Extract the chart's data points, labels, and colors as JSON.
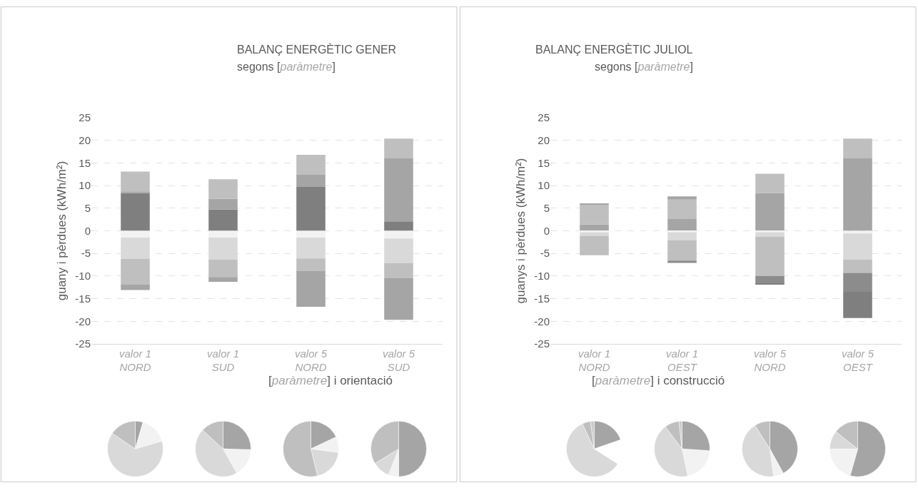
{
  "chart_data": [
    {
      "type": "bar",
      "title": "BALANÇ ENERGÈTIC GENER",
      "subtitle": "segons [paràmetre]",
      "xlabel": "[paràmetre] i orientació",
      "ylabel": "guany i pèrdues (kWh/m²)",
      "stacked": true,
      "grid": "y",
      "categories": [
        "valor 1\nNORD",
        "valor 1\nSUD",
        "valor 5\nNORD",
        "valor 5\nSUD"
      ],
      "ylim": [
        -25,
        25
      ],
      "yticks": [
        -25,
        -20,
        -15,
        -10,
        -5,
        0,
        5,
        10,
        15,
        20,
        25
      ],
      "series": [
        {
          "color": "#7f7f7f",
          "values": [
            8.3,
            4.7,
            9.7,
            2.1
          ]
        },
        {
          "color": "#a5a5a5",
          "values": [
            0.4,
            2.4,
            2.7,
            13.9
          ]
        },
        {
          "color": "#bfbfbf",
          "values": [
            4.4,
            4.3,
            4.4,
            4.4
          ]
        },
        {
          "color": "#f2f2f2",
          "values": [
            -1.5,
            -1.5,
            -1.5,
            -1.7
          ]
        },
        {
          "color": "#d9d9d9",
          "values": [
            -4.7,
            -4.9,
            -4.6,
            -5.4
          ]
        },
        {
          "color": "#bfbfbf",
          "values": [
            -5.7,
            -3.8,
            -2.8,
            -3.4
          ]
        },
        {
          "color": "#a5a5a5",
          "values": [
            -1.2,
            -1.1,
            -7.9,
            -9.2
          ]
        }
      ]
    },
    {
      "type": "bar",
      "title": "BALANÇ ENERGÈTIC JULIOL",
      "subtitle": "segons [paràmetre]",
      "xlabel": "[paràmetre] i construcció",
      "ylabel": "guanys i pèrdues (kWh/m²)",
      "stacked": true,
      "grid": "y",
      "categories": [
        "valor 1\nNORD",
        "valor 1\nOEST",
        "valor 5\nNORD",
        "valor 5\nOEST"
      ],
      "ylim": [
        -25,
        25
      ],
      "yticks": [
        -25,
        -20,
        -15,
        -10,
        -5,
        0,
        5,
        10,
        15,
        20,
        25
      ],
      "series": [
        {
          "color": "#a5a5a5",
          "values": [
            1.4,
            2.6,
            8.3,
            16.0
          ]
        },
        {
          "color": "#bfbfbf",
          "values": [
            4.4,
            4.3,
            4.3,
            4.4
          ]
        },
        {
          "color": "#a5a5a5",
          "values": [
            0.2,
            0.7,
            null,
            null
          ]
        },
        {
          "color": "#f2f2f2",
          "values": [
            -0.3,
            -0.3,
            -0.3,
            -0.6
          ]
        },
        {
          "color": "#d9d9d9",
          "values": [
            -0.8,
            -1.8,
            -1.0,
            -5.8
          ]
        },
        {
          "color": "#bfbfbf",
          "values": [
            -4.3,
            -4.5,
            -8.7,
            -2.9
          ]
        },
        {
          "color": "#8c8c8c",
          "values": [
            null,
            -0.5,
            -1.7,
            -4.2
          ]
        },
        {
          "color": "#7f7f7f",
          "values": [
            null,
            null,
            -0.2,
            -5.8
          ]
        }
      ]
    },
    {
      "type": "pie",
      "categories": [
        null,
        null,
        null,
        null
      ],
      "values": [
        4.5,
        16,
        64,
        15.5
      ],
      "colors": [
        "#a5a5a5",
        "#f2f2f2",
        "#d9d9d9",
        "#bfbfbf"
      ]
    },
    {
      "type": "pie",
      "categories": [
        null,
        null,
        null,
        null
      ],
      "values": [
        25.5,
        16.3,
        45,
        13.2
      ],
      "colors": [
        "#a5a5a5",
        "#f2f2f2",
        "#d9d9d9",
        "#bfbfbf"
      ]
    },
    {
      "type": "pie",
      "categories": [
        null,
        null,
        null,
        null
      ],
      "values": [
        18,
        9.1,
        19.1,
        53.8
      ],
      "colors": [
        "#a5a5a5",
        "#f2f2f2",
        "#d9d9d9",
        "#bfbfbf"
      ]
    },
    {
      "type": "pie",
      "categories": [
        null,
        null,
        null,
        null
      ],
      "values": [
        50,
        6,
        10.3,
        33.7
      ],
      "colors": [
        "#a5a5a5",
        "#f2f2f2",
        "#d9d9d9",
        "#bfbfbf"
      ]
    },
    {
      "type": "pie",
      "categories": [
        null,
        null,
        null,
        null,
        null
      ],
      "values": [
        19.7,
        14.4,
        58.9,
        4.8,
        2.2
      ],
      "colors": [
        "#a5a5a5",
        "#ffffff",
        "#d9d9d9",
        "#bfbfbf",
        "#cccccc"
      ]
    },
    {
      "type": "pie",
      "categories": [
        null,
        null,
        null,
        null,
        null
      ],
      "values": [
        26.1,
        20.6,
        43,
        8.5,
        1.8
      ],
      "colors": [
        "#a5a5a5",
        "#f2f2f2",
        "#d9d9d9",
        "#bfbfbf",
        "#cccccc"
      ]
    },
    {
      "type": "pie",
      "categories": [
        null,
        null,
        null,
        null
      ],
      "values": [
        42,
        5.9,
        43.1,
        9
      ],
      "colors": [
        "#a5a5a5",
        "#f2f2f2",
        "#d9d9d9",
        "#bfbfbf"
      ]
    },
    {
      "type": "pie",
      "categories": [
        null,
        null,
        null,
        null
      ],
      "values": [
        54.4,
        20.6,
        10.7,
        14.3
      ],
      "colors": [
        "#a5a5a5",
        "#f2f2f2",
        "#d9d9d9",
        "#bfbfbf"
      ]
    }
  ]
}
